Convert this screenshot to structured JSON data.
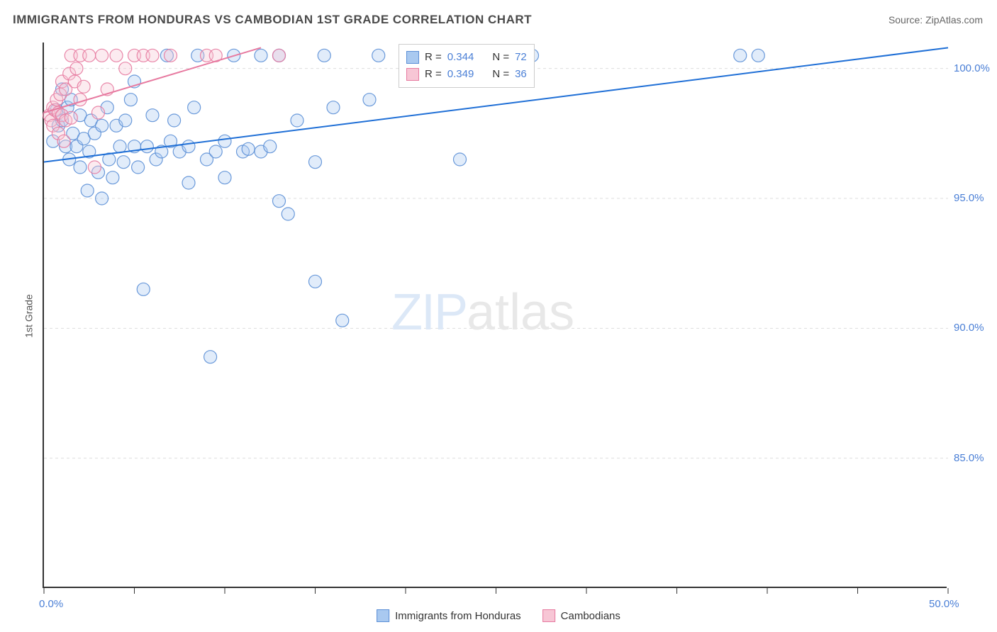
{
  "title": "IMMIGRANTS FROM HONDURAS VS CAMBODIAN 1ST GRADE CORRELATION CHART",
  "source": "Source: ZipAtlas.com",
  "ylabel": "1st Grade",
  "watermark_zip": "ZIP",
  "watermark_atlas": "atlas",
  "chart": {
    "type": "scatter",
    "xlim": [
      0,
      50
    ],
    "ylim": [
      80,
      101
    ],
    "x_tick_positions": [
      0,
      5,
      10,
      15,
      20,
      25,
      30,
      35,
      40,
      45,
      50
    ],
    "x_tick_labels": {
      "0": "0.0%",
      "50": "50.0%"
    },
    "y_ticks": [
      85,
      90,
      95,
      100
    ],
    "y_tick_labels": [
      "85.0%",
      "90.0%",
      "95.0%",
      "100.0%"
    ],
    "grid_color": "#dddddd",
    "background": "#ffffff",
    "marker_radius": 9,
    "marker_fill_opacity": 0.35,
    "marker_stroke_opacity": 0.9,
    "line_width": 2
  },
  "series": [
    {
      "name": "Immigrants from Honduras",
      "color_fill": "#a9c9f0",
      "color_stroke": "#5b8fd6",
      "line_color": "#1f6fd6",
      "r_label": "R =",
      "r_value": "0.344",
      "n_label": "N =",
      "n_value": "72",
      "trend": {
        "x1": 0,
        "y1": 96.4,
        "x2": 50,
        "y2": 100.8
      },
      "points": [
        [
          0.5,
          97.2
        ],
        [
          0.7,
          98.4
        ],
        [
          0.8,
          97.8
        ],
        [
          1.0,
          98.0
        ],
        [
          1.0,
          99.2
        ],
        [
          1.2,
          97.0
        ],
        [
          1.3,
          98.5
        ],
        [
          1.4,
          96.5
        ],
        [
          1.5,
          98.8
        ],
        [
          1.6,
          97.5
        ],
        [
          1.8,
          97.0
        ],
        [
          2.0,
          98.2
        ],
        [
          2.0,
          96.2
        ],
        [
          2.2,
          97.3
        ],
        [
          2.4,
          95.3
        ],
        [
          2.5,
          96.8
        ],
        [
          2.6,
          98.0
        ],
        [
          2.8,
          97.5
        ],
        [
          3.0,
          96.0
        ],
        [
          3.2,
          95.0
        ],
        [
          3.2,
          97.8
        ],
        [
          3.5,
          98.5
        ],
        [
          3.6,
          96.5
        ],
        [
          3.8,
          95.8
        ],
        [
          4.0,
          97.8
        ],
        [
          4.2,
          97.0
        ],
        [
          4.4,
          96.4
        ],
        [
          4.5,
          98.0
        ],
        [
          4.8,
          98.8
        ],
        [
          5.0,
          99.5
        ],
        [
          5.0,
          97.0
        ],
        [
          5.2,
          96.2
        ],
        [
          5.5,
          91.5
        ],
        [
          5.7,
          97.0
        ],
        [
          6.0,
          98.2
        ],
        [
          6.2,
          96.5
        ],
        [
          6.5,
          96.8
        ],
        [
          6.8,
          100.5
        ],
        [
          7.0,
          97.2
        ],
        [
          7.2,
          98.0
        ],
        [
          7.5,
          96.8
        ],
        [
          8.0,
          95.6
        ],
        [
          8.0,
          97.0
        ],
        [
          8.3,
          98.5
        ],
        [
          8.5,
          100.5
        ],
        [
          9.0,
          96.5
        ],
        [
          9.2,
          88.9
        ],
        [
          9.5,
          96.8
        ],
        [
          10.0,
          95.8
        ],
        [
          10.0,
          97.2
        ],
        [
          10.5,
          100.5
        ],
        [
          11.0,
          96.8
        ],
        [
          11.3,
          96.9
        ],
        [
          12.0,
          100.5
        ],
        [
          12.0,
          96.8
        ],
        [
          12.5,
          97.0
        ],
        [
          13.0,
          94.9
        ],
        [
          13.0,
          100.5
        ],
        [
          13.5,
          94.4
        ],
        [
          14.0,
          98.0
        ],
        [
          15.0,
          96.4
        ],
        [
          15.0,
          91.8
        ],
        [
          15.5,
          100.5
        ],
        [
          16.0,
          98.5
        ],
        [
          16.5,
          90.3
        ],
        [
          18.0,
          98.8
        ],
        [
          18.5,
          100.5
        ],
        [
          23.0,
          96.5
        ],
        [
          26.0,
          100.5
        ],
        [
          27.0,
          100.5
        ],
        [
          38.5,
          100.5
        ],
        [
          39.5,
          100.5
        ]
      ]
    },
    {
      "name": "Cambodians",
      "color_fill": "#f7c6d5",
      "color_stroke": "#e77aa0",
      "line_color": "#e77aa0",
      "r_label": "R =",
      "r_value": "0.349",
      "n_label": "N =",
      "n_value": "36",
      "trend": {
        "x1": 0,
        "y1": 98.3,
        "x2": 12,
        "y2": 100.8
      },
      "points": [
        [
          0.3,
          98.2
        ],
        [
          0.4,
          98.0
        ],
        [
          0.5,
          97.8
        ],
        [
          0.5,
          98.5
        ],
        [
          0.6,
          98.4
        ],
        [
          0.7,
          98.8
        ],
        [
          0.8,
          97.5
        ],
        [
          0.8,
          98.3
        ],
        [
          0.9,
          99.0
        ],
        [
          1.0,
          98.2
        ],
        [
          1.0,
          99.5
        ],
        [
          1.1,
          97.2
        ],
        [
          1.2,
          99.2
        ],
        [
          1.2,
          98.0
        ],
        [
          1.4,
          99.8
        ],
        [
          1.5,
          100.5
        ],
        [
          1.5,
          98.1
        ],
        [
          1.7,
          99.5
        ],
        [
          1.8,
          100.0
        ],
        [
          2.0,
          100.5
        ],
        [
          2.0,
          98.8
        ],
        [
          2.2,
          99.3
        ],
        [
          2.5,
          100.5
        ],
        [
          2.8,
          96.2
        ],
        [
          3.0,
          98.3
        ],
        [
          3.2,
          100.5
        ],
        [
          3.5,
          99.2
        ],
        [
          4.0,
          100.5
        ],
        [
          4.5,
          100.0
        ],
        [
          5.0,
          100.5
        ],
        [
          5.5,
          100.5
        ],
        [
          6.0,
          100.5
        ],
        [
          7.0,
          100.5
        ],
        [
          9.0,
          100.5
        ],
        [
          9.5,
          100.5
        ],
        [
          13.0,
          100.5
        ]
      ]
    }
  ],
  "bottom_legend": [
    {
      "label": "Immigrants from Honduras",
      "fill": "#a9c9f0",
      "stroke": "#5b8fd6"
    },
    {
      "label": "Cambodians",
      "fill": "#f7c6d5",
      "stroke": "#e77aa0"
    }
  ]
}
